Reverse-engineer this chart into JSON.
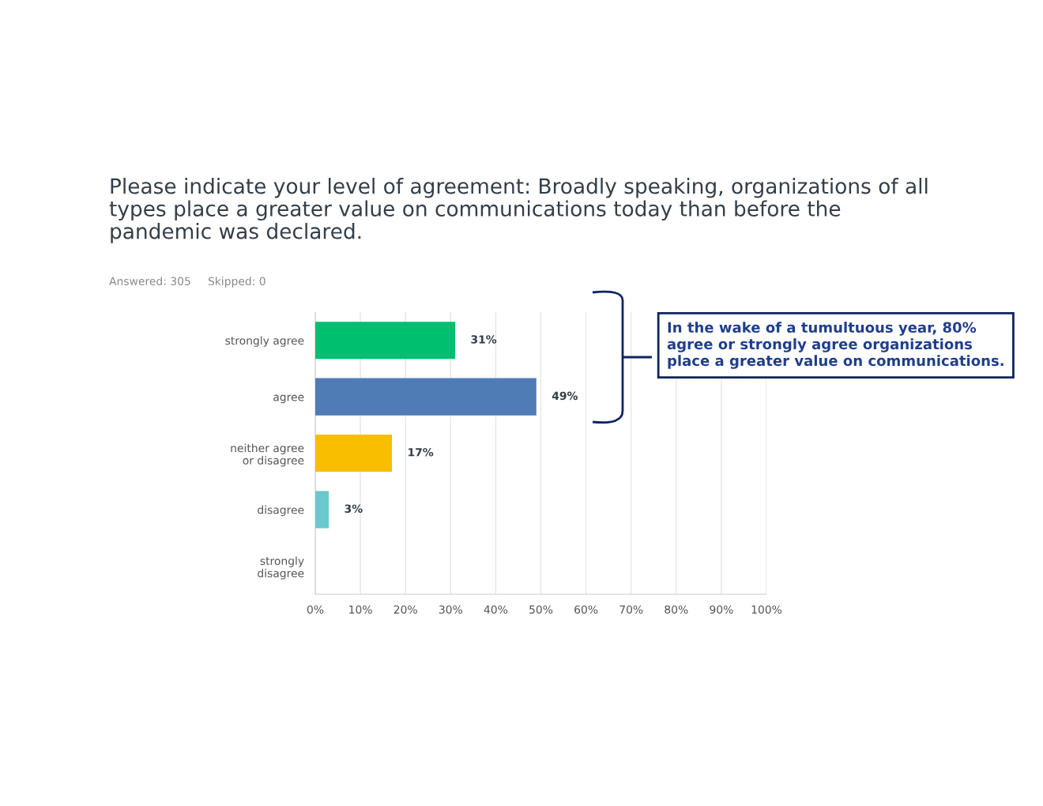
{
  "chart_data": {
    "type": "bar",
    "orientation": "horizontal",
    "title": "Please indicate your level of agreement: Broadly speaking, organizations of all\ntypes place a greater value on communications today than before the\npandemic was declared.",
    "categories": [
      "strongly agree",
      "agree",
      "neither agree\nor disagree",
      "disagree",
      "strongly\ndisagree"
    ],
    "values": [
      31,
      49,
      17,
      3,
      0
    ],
    "colors": [
      "#00bf6f",
      "#507cb6",
      "#f9be00",
      "#6bc8cd",
      "#b3b3b3"
    ],
    "value_labels": [
      "31%",
      "49%",
      "17%",
      "3%",
      null
    ],
    "xlim": [
      0,
      100
    ],
    "xticks": [
      {
        "value": 0,
        "label": "0%"
      },
      {
        "value": 10,
        "label": "10%"
      },
      {
        "value": 20,
        "label": "20%"
      },
      {
        "value": 30,
        "label": "30%"
      },
      {
        "value": 40,
        "label": "40%"
      },
      {
        "value": 50,
        "label": "50%"
      },
      {
        "value": 60,
        "label": "60%"
      },
      {
        "value": 70,
        "label": "70%"
      },
      {
        "value": 80,
        "label": "80%"
      },
      {
        "value": 90,
        "label": "90%"
      },
      {
        "value": 100,
        "label": "100%"
      }
    ],
    "grid": "x",
    "annotations": [
      "Answered: 305",
      "Skipped: 0",
      "In the wake of a tumultuous year, 80%\nagree or strongly agree organizations\nplace a greater value on communications."
    ]
  }
}
